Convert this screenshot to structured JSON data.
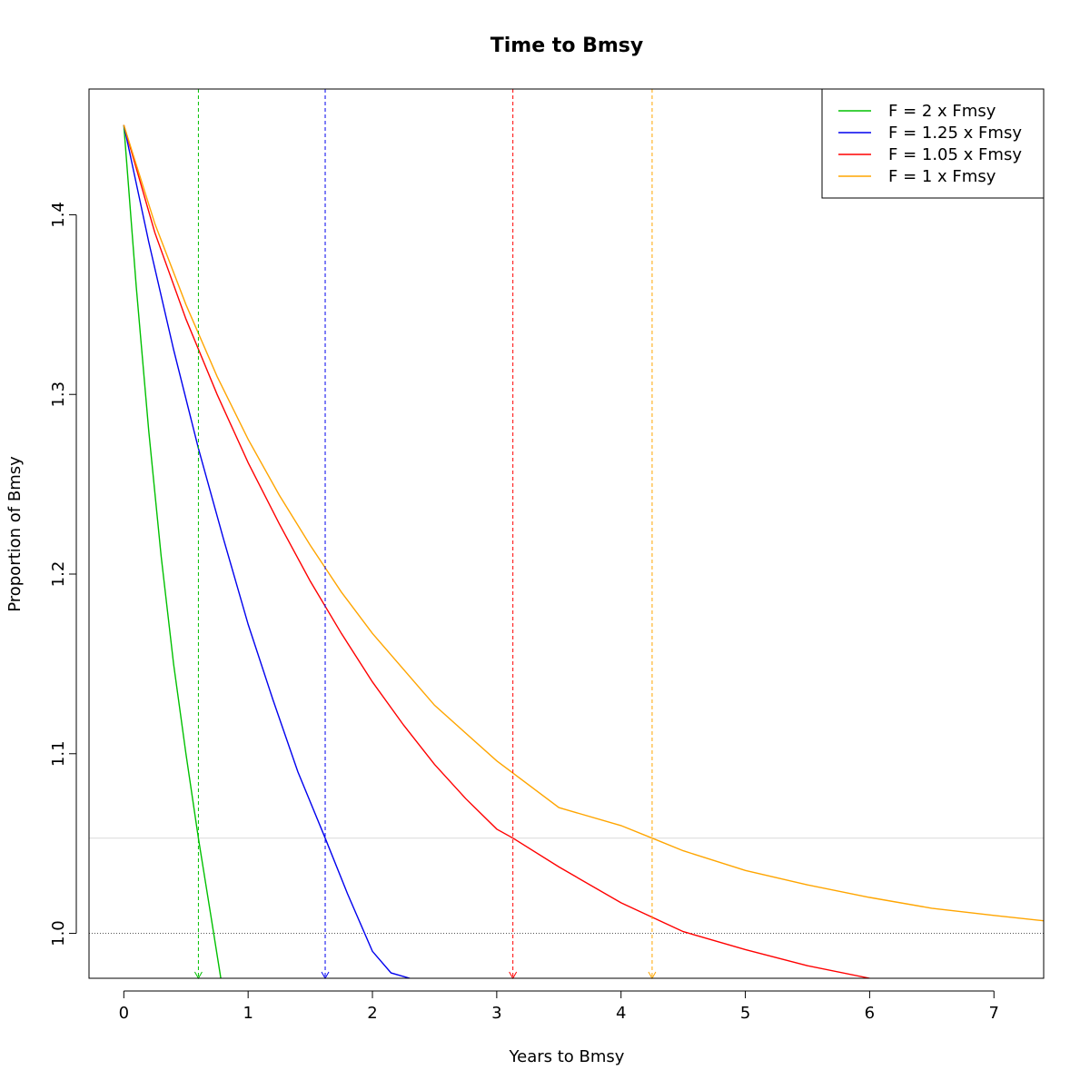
{
  "chart_data": {
    "type": "line",
    "title": "Time to Bmsy",
    "xlabel": "Years to Bmsy",
    "ylabel": "Proportion of Bmsy",
    "xlim": [
      -0.28,
      7.4
    ],
    "ylim": [
      0.975,
      1.47
    ],
    "x_ticks": [
      0,
      1,
      2,
      3,
      4,
      5,
      6,
      7
    ],
    "x_tick_labels": [
      "0",
      "1",
      "2",
      "3",
      "4",
      "5",
      "6",
      "7"
    ],
    "y_ticks": [
      1.0,
      1.1,
      1.2,
      1.3,
      1.4
    ],
    "y_tick_labels": [
      "1.0",
      "1.1",
      "1.2",
      "1.3",
      "1.4"
    ],
    "grid": false,
    "legend_position": "top-right",
    "reference_lines": {
      "horizontal_dotted_y": 1.0,
      "horizontal_dotted_color": "#555555",
      "horizontal_threshold_y": 1.053,
      "horizontal_threshold_color": "#d9d9d9"
    },
    "series": [
      {
        "name": "F = 2 x Fmsy",
        "color": "#00c000",
        "x": [
          0,
          0.1,
          0.2,
          0.3,
          0.4,
          0.5,
          0.6,
          0.7,
          0.78
        ],
        "y": [
          1.45,
          1.36,
          1.28,
          1.21,
          1.15,
          1.1,
          1.053,
          1.01,
          0.975
        ],
        "time_to_target": 0.6
      },
      {
        "name": "F = 1.25 x Fmsy",
        "color": "#0000ee",
        "x": [
          0,
          0.2,
          0.4,
          0.6,
          0.8,
          1.0,
          1.2,
          1.4,
          1.62,
          1.8,
          2.0,
          2.15,
          2.3
        ],
        "y": [
          1.45,
          1.385,
          1.325,
          1.27,
          1.22,
          1.172,
          1.13,
          1.09,
          1.053,
          1.022,
          0.99,
          0.978,
          0.975
        ],
        "time_to_target": 1.62
      },
      {
        "name": "F = 1.05 x Fmsy",
        "color": "#ff0000",
        "x": [
          0,
          0.25,
          0.5,
          0.75,
          1.0,
          1.25,
          1.5,
          1.75,
          2.0,
          2.25,
          2.5,
          2.75,
          3.0,
          3.13,
          3.5,
          4.0,
          4.25,
          4.5,
          5.0,
          5.5,
          6.0
        ],
        "y": [
          1.45,
          1.39,
          1.342,
          1.3,
          1.262,
          1.228,
          1.196,
          1.167,
          1.14,
          1.116,
          1.094,
          1.075,
          1.058,
          1.053,
          1.037,
          1.017,
          1.009,
          1.001,
          0.991,
          0.982,
          0.975
        ],
        "time_to_target": 3.13
      },
      {
        "name": "F = 1 x Fmsy",
        "color": "#ffa500",
        "x": [
          0,
          0.25,
          0.5,
          0.75,
          1.0,
          1.25,
          1.5,
          1.75,
          2.0,
          2.5,
          3.0,
          3.5,
          4.0,
          4.25,
          4.5,
          5.0,
          5.5,
          6.0,
          6.5,
          7.0,
          7.4
        ],
        "y": [
          1.45,
          1.395,
          1.35,
          1.31,
          1.275,
          1.244,
          1.216,
          1.19,
          1.167,
          1.127,
          1.096,
          1.07,
          1.06,
          1.053,
          1.046,
          1.035,
          1.027,
          1.02,
          1.014,
          1.01,
          1.007
        ],
        "time_to_target": 4.25
      }
    ]
  }
}
